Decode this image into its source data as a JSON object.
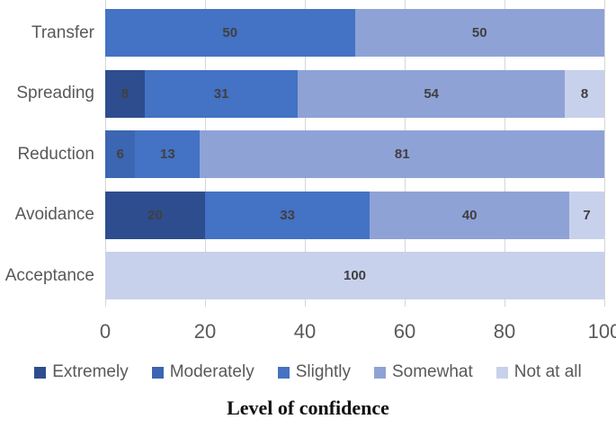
{
  "chart_data": {
    "type": "bar",
    "orientation": "horizontal_stacked",
    "title": "Level of confidence",
    "categories": [
      "Transfer",
      "Spreading",
      "Reduction",
      "Avoidance",
      "Acceptance"
    ],
    "series": [
      {
        "name": "Extremely",
        "color": "#2D4D8E",
        "values": [
          0,
          8,
          0,
          20,
          0
        ]
      },
      {
        "name": "Moderately",
        "color": "#3C66B2",
        "values": [
          0,
          0,
          6,
          0,
          0
        ]
      },
      {
        "name": "Slightly",
        "color": "#4472C4",
        "values": [
          50,
          31,
          13,
          33,
          0
        ]
      },
      {
        "name": "Somewhat",
        "color": "#8FA2D6",
        "values": [
          50,
          54,
          81,
          40,
          0
        ]
      },
      {
        "name": "Not at all",
        "color": "#C8D1EC",
        "values": [
          0,
          8,
          0,
          7,
          100
        ]
      }
    ],
    "x_ticks": [
      0,
      20,
      40,
      60,
      80,
      100
    ],
    "xlim": [
      0,
      100
    ],
    "grid": "vertical",
    "legend_position": "bottom",
    "value_labels": "inside-center"
  },
  "colors": {
    "gridline": "#D6D6D6",
    "axis_text": "#595959",
    "value_label": "#404040",
    "background": "#FFFFFF"
  }
}
